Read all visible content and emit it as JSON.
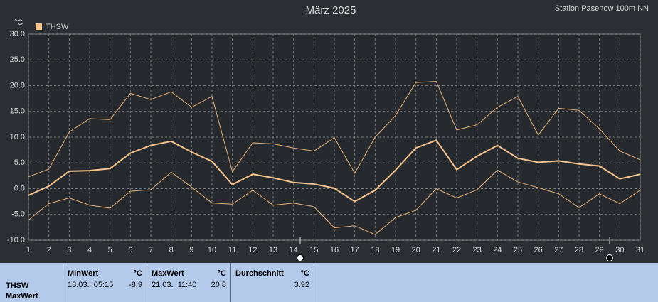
{
  "chart_data": {
    "type": "line",
    "title": "März 2025",
    "station": "Station Pasenow 100m NN",
    "y_unit": "°C",
    "x": [
      1,
      2,
      3,
      4,
      5,
      6,
      7,
      8,
      9,
      10,
      11,
      12,
      13,
      14,
      15,
      16,
      17,
      18,
      19,
      20,
      21,
      22,
      23,
      24,
      25,
      26,
      27,
      28,
      29,
      30,
      31
    ],
    "series": [
      {
        "name": "THSW",
        "color": "#f7c48e",
        "values": [
          -1.3,
          0.5,
          3.4,
          3.5,
          3.9,
          6.9,
          8.4,
          9.2,
          7.1,
          5.3,
          0.8,
          2.8,
          2.1,
          1.2,
          0.9,
          0.1,
          -2.5,
          -0.3,
          3.6,
          7.9,
          9.4,
          3.7,
          6.3,
          8.4,
          5.9,
          5.1,
          5.4,
          4.8,
          4.4,
          1.9,
          2.8
        ]
      },
      {
        "color": "#e9b37c",
        "values": [
          2.3,
          3.8,
          11,
          13.6,
          13.4,
          18.5,
          17.3,
          18.8,
          15.8,
          17.9,
          3.3,
          8.9,
          8.7,
          7.9,
          7.3,
          9.9,
          3.0,
          10.0,
          14.2,
          20.6,
          20.8,
          11.4,
          12.4,
          15.8,
          17.9,
          10.4,
          15.6,
          15.2,
          11.6,
          7.3,
          5.6
        ]
      },
      {
        "color": "#e9b37c",
        "values": [
          -6.1,
          -2.9,
          -1.8,
          -3.2,
          -3.8,
          -0.5,
          -0.2,
          3.2,
          0.3,
          -2.8,
          -3.0,
          -0.3,
          -3.2,
          -2.8,
          -3.5,
          -7.6,
          -7.2,
          -8.9,
          -5.6,
          -4.2,
          0.0,
          -1.8,
          -0.2,
          3.6,
          1.3,
          0.2,
          -1.0,
          -3.7,
          -1.0,
          -2.9,
          -0.3
        ]
      }
    ],
    "xlim": [
      1,
      31
    ],
    "xticks": [
      1,
      2,
      3,
      4,
      5,
      6,
      7,
      8,
      9,
      10,
      11,
      12,
      13,
      14,
      15,
      16,
      17,
      18,
      19,
      20,
      21,
      22,
      23,
      24,
      25,
      26,
      27,
      28,
      29,
      30,
      31
    ],
    "ylim": [
      -10,
      30
    ],
    "yticks": [
      {
        "value": -10,
        "label": "-10.0"
      },
      {
        "value": -5,
        "label": "-5.0"
      },
      {
        "value": 0,
        "label": "0.0"
      },
      {
        "value": 5,
        "label": "5.0"
      },
      {
        "value": 10,
        "label": "10.0"
      },
      {
        "value": 15,
        "label": "15.0"
      },
      {
        "value": 20,
        "label": "20.0"
      },
      {
        "value": 25,
        "label": "25.0"
      },
      {
        "value": 30,
        "label": "30.0"
      }
    ],
    "grid": true
  },
  "summary": {
    "label": "THSW",
    "sublabel": "MaxWert",
    "cells": [
      {
        "title": "MinWert",
        "unit": "°C",
        "time": "18.03.  05:15",
        "value": -8.9
      },
      {
        "title": "MaxWert",
        "unit": "°C",
        "time": "21.03.  11:40",
        "value": 20.8
      },
      {
        "title": "Durchschnitt",
        "unit": "°C",
        "value": 3.92
      }
    ]
  }
}
